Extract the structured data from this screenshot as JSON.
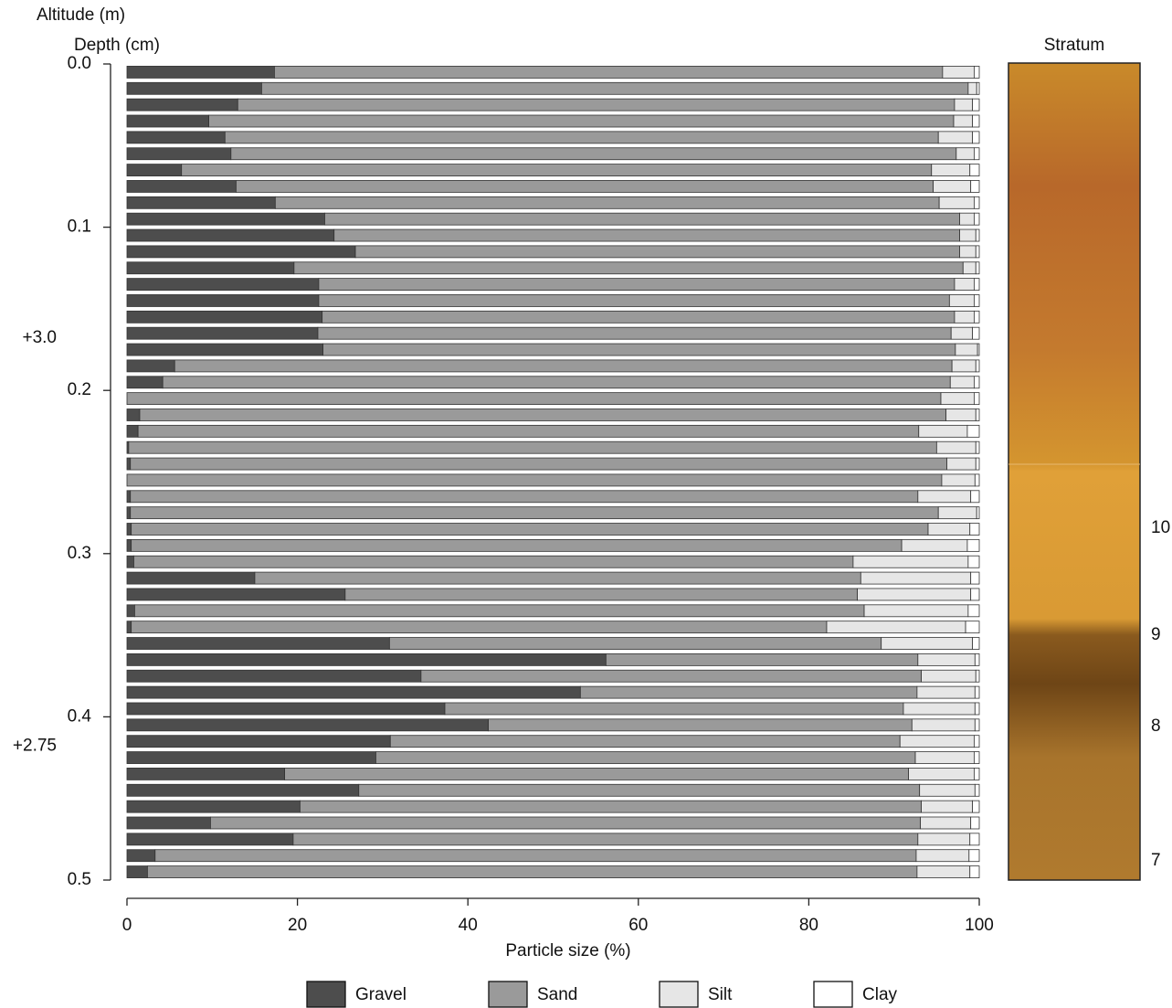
{
  "chart_data": {
    "type": "stacked-barh",
    "y2_title": "Altitude (m)",
    "y_title": "Depth (cm)",
    "xlabel": "Particle size (%)",
    "xlim": [
      0,
      100
    ],
    "xticks": [
      0,
      20,
      40,
      60,
      80,
      100
    ],
    "ylim": [
      0,
      0.5
    ],
    "yticks": [
      {
        "value": 0,
        "label": "0.0"
      },
      0.1,
      0.2,
      0.3,
      0.4,
      0.5
    ],
    "y2lim": [
      3.168,
      2.668
    ],
    "y2ticks": [
      {
        "value": 3.0,
        "label": "+3.0"
      },
      {
        "value": 2.75,
        "label": "+2.75"
      }
    ],
    "depth": [
      0.005,
      0.015,
      0.025,
      0.035,
      0.045,
      0.055,
      0.065,
      0.075,
      0.085,
      0.095,
      0.105,
      0.115,
      0.125,
      0.135,
      0.145,
      0.155,
      0.165,
      0.175,
      0.185,
      0.195,
      0.205,
      0.215,
      0.225,
      0.235,
      0.245,
      0.255,
      0.265,
      0.275,
      0.285,
      0.295,
      0.305,
      0.315,
      0.325,
      0.335,
      0.345,
      0.355,
      0.365,
      0.375,
      0.385,
      0.395,
      0.405,
      0.415,
      0.425,
      0.435,
      0.445,
      0.455,
      0.465,
      0.475,
      0.485,
      0.495
    ],
    "series": [
      {
        "name": "Gravel",
        "color": "#4d4d4d",
        "values": [
          17.3,
          15.8,
          13.0,
          9.6,
          11.5,
          12.2,
          6.4,
          12.8,
          17.4,
          23.2,
          24.3,
          26.8,
          19.6,
          22.5,
          22.5,
          22.9,
          22.4,
          23.0,
          5.6,
          4.2,
          0,
          1.5,
          1.3,
          0.2,
          0.4,
          0,
          0.4,
          0.4,
          0.5,
          0.5,
          0.8,
          15.0,
          25.6,
          0.9,
          0.5,
          30.8,
          56.2,
          34.5,
          53.2,
          37.3,
          42.4,
          30.9,
          29.2,
          18.5,
          27.2,
          20.3,
          9.8,
          19.5,
          3.3,
          2.4
        ]
      },
      {
        "name": "Sand",
        "color": "#9a9a9a",
        "values": [
          78.4,
          82.9,
          84.1,
          87.4,
          83.7,
          85.1,
          88.0,
          81.8,
          77.9,
          74.5,
          73.4,
          70.9,
          78.5,
          74.6,
          74.0,
          74.2,
          74.3,
          74.2,
          91.2,
          92.4,
          95.5,
          94.6,
          91.6,
          94.8,
          95.8,
          95.6,
          92.4,
          94.8,
          93.5,
          90.4,
          84.4,
          71.1,
          60.1,
          85.6,
          81.6,
          57.7,
          36.6,
          58.7,
          39.5,
          53.8,
          49.7,
          59.8,
          63.3,
          73.2,
          65.8,
          72.9,
          83.3,
          73.3,
          89.3,
          90.3
        ]
      },
      {
        "name": "Silt",
        "color": "#e6e6e6",
        "values": [
          3.7,
          1.0,
          2.1,
          2.2,
          4.0,
          2.1,
          4.5,
          4.4,
          4.1,
          1.7,
          1.9,
          1.9,
          1.5,
          2.3,
          2.9,
          2.3,
          2.5,
          2.6,
          2.8,
          2.8,
          3.9,
          3.5,
          5.7,
          4.6,
          3.4,
          3.9,
          6.2,
          4.5,
          4.9,
          7.7,
          13.5,
          12.9,
          13.3,
          12.2,
          16.3,
          10.7,
          6.7,
          6.4,
          6.8,
          8.4,
          7.4,
          8.7,
          6.9,
          7.7,
          6.5,
          6.0,
          5.9,
          6.1,
          6.2,
          6.2
        ]
      },
      {
        "name": "Clay",
        "color": "#ffffff",
        "values": [
          0.6,
          0.3,
          0.8,
          0.8,
          0.8,
          0.6,
          1.1,
          1.0,
          0.6,
          0.6,
          0.4,
          0.4,
          0.4,
          0.6,
          0.6,
          0.6,
          0.8,
          0.2,
          0.4,
          0.6,
          0.6,
          0.4,
          1.4,
          0.4,
          0.4,
          0.5,
          1.0,
          0.3,
          1.1,
          1.4,
          1.3,
          1.0,
          1.0,
          1.3,
          1.6,
          0.8,
          0.5,
          0.4,
          0.5,
          0.5,
          0.5,
          0.6,
          0.6,
          0.6,
          0.5,
          0.8,
          1.0,
          1.1,
          1.2,
          1.1
        ]
      }
    ],
    "strata": {
      "title": "Stratum",
      "labels": [
        "10",
        "9",
        "8",
        "7"
      ]
    }
  }
}
